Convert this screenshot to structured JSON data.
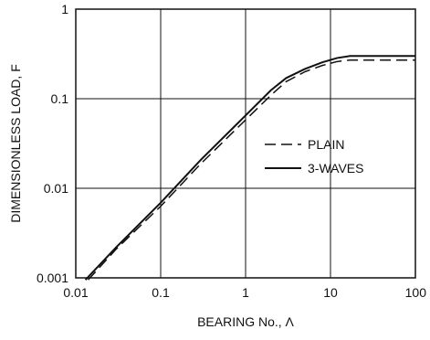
{
  "chart_data": {
    "type": "line",
    "title": "",
    "xlabel": "BEARING No., Λ",
    "ylabel": "DIMENSIONLESS LOAD, F",
    "xscale": "log",
    "yscale": "log",
    "xlim": [
      0.01,
      100
    ],
    "ylim": [
      0.001,
      1
    ],
    "xticks": [
      0.01,
      0.1,
      1,
      10,
      100
    ],
    "xtick_labels": [
      "0.01",
      "0.1",
      "1",
      "10",
      "100"
    ],
    "yticks": [
      0.001,
      0.01,
      0.1,
      1
    ],
    "ytick_labels": [
      "0.001",
      "0.01",
      "0.1",
      "1"
    ],
    "grid": true,
    "legend_position": "center-right",
    "series": [
      {
        "name": "PLAIN",
        "style": "dashed",
        "color": "#111111",
        "x": [
          0.014,
          0.03,
          0.1,
          0.3,
          1,
          2,
          3,
          5,
          8,
          12,
          17,
          30,
          100
        ],
        "y": [
          0.00095,
          0.0021,
          0.0063,
          0.019,
          0.058,
          0.11,
          0.155,
          0.2,
          0.235,
          0.26,
          0.27,
          0.27,
          0.27
        ]
      },
      {
        "name": "3-WAVES",
        "style": "solid",
        "color": "#111111",
        "x": [
          0.013,
          0.03,
          0.1,
          0.3,
          1,
          2,
          3,
          5,
          8,
          12,
          17,
          30,
          100
        ],
        "y": [
          0.00095,
          0.0022,
          0.0069,
          0.021,
          0.065,
          0.125,
          0.17,
          0.215,
          0.255,
          0.285,
          0.3,
          0.3,
          0.3
        ]
      }
    ]
  }
}
